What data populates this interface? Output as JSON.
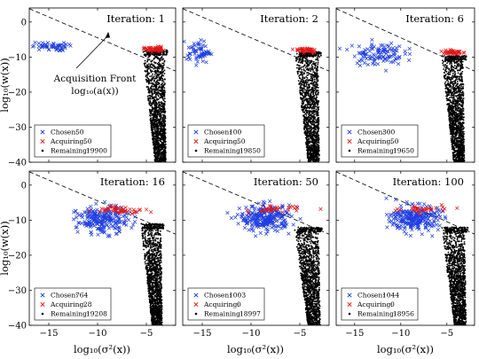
{
  "axes": {
    "xlabel": "log₁₀(σ²(x))",
    "ylabel": "log₁₀(w(x))",
    "xlim": [
      -17,
      -2
    ],
    "ylim": [
      -40,
      4
    ],
    "xticks": [
      -15,
      -10,
      -5
    ],
    "yticks": [
      0,
      -10,
      -20,
      -30,
      -40
    ]
  },
  "annotation": {
    "line1": "Acquisition Front",
    "line2": "log₁₀(a(x))",
    "arrow_head": [
      -8.9,
      -2.8
    ]
  },
  "front_line": {
    "style": "dashed",
    "x": [
      -17,
      -2
    ],
    "y": [
      3.8,
      -14
    ]
  },
  "colors": {
    "chosen": "#1f3fe0",
    "acquiring": "#e51515",
    "remaining": "#000000",
    "front": "#000000"
  },
  "chart_data": [
    {
      "type": "scatter",
      "title": "Iteration: 1",
      "legend": [
        {
          "label": "Chosen:",
          "value": "50"
        },
        {
          "label": "Acquiring:",
          "value": "50"
        },
        {
          "label": "Remaining:",
          "value": "19900"
        }
      ],
      "chosen_cluster": {
        "cx": -14.9,
        "cy": -7,
        "sx": 0.9,
        "sy": 0.6
      },
      "acquiring_cluster": {
        "cx": -4.2,
        "cy": -7.8,
        "sx": 0.5,
        "sy": 0.4
      },
      "remaining_tail": {
        "xl": -5.3,
        "xr": -2.8,
        "ytop": -8,
        "ybot": -40
      }
    },
    {
      "type": "scatter",
      "title": "Iteration: 2",
      "legend": [
        {
          "label": "Chosen:",
          "value": "100"
        },
        {
          "label": "Acquiring:",
          "value": "50"
        },
        {
          "label": "Remaining:",
          "value": "19850"
        }
      ],
      "chosen_cluster": {
        "cx": -15.4,
        "cy": -8.5,
        "sx": 0.6,
        "sy": 1.6
      },
      "acquiring_cluster": {
        "cx": -4.3,
        "cy": -8,
        "sx": 0.55,
        "sy": 0.4
      },
      "remaining_tail": {
        "xl": -5.4,
        "xr": -2.8,
        "ytop": -8.5,
        "ybot": -40
      }
    },
    {
      "type": "scatter",
      "title": "Iteration: 6",
      "legend": [
        {
          "label": "Chosen:",
          "value": "300"
        },
        {
          "label": "Acquiring:",
          "value": "50"
        },
        {
          "label": "Remaining:",
          "value": "19650"
        }
      ],
      "chosen_cluster": {
        "cx": -12.5,
        "cy": -9,
        "sx": 1.4,
        "sy": 1.6
      },
      "acquiring_cluster": {
        "cx": -4.4,
        "cy": -8.6,
        "sx": 0.5,
        "sy": 0.4
      },
      "remaining_tail": {
        "xl": -5.5,
        "xr": -2.9,
        "ytop": -9.5,
        "ybot": -40
      }
    },
    {
      "type": "scatter",
      "title": "Iteration: 16",
      "legend": [
        {
          "label": "Chosen:",
          "value": "764"
        },
        {
          "label": "Acquiring:",
          "value": "28"
        },
        {
          "label": "Remaining:",
          "value": "19208"
        }
      ],
      "chosen_cluster": {
        "cx": -9.5,
        "cy": -10,
        "sx": 1.3,
        "sy": 1.9
      },
      "acquiring_cluster": {
        "cx": -7.5,
        "cy": -7,
        "sx": 1.3,
        "sy": 0.5
      },
      "remaining_tail": {
        "xl": -5.5,
        "xr": -3.2,
        "ytop": -11,
        "ybot": -40
      }
    },
    {
      "type": "scatter",
      "title": "Iteration: 50",
      "legend": [
        {
          "label": "Chosen:",
          "value": "1003"
        },
        {
          "label": "Acquiring:",
          "value": "0"
        },
        {
          "label": "Remaining:",
          "value": "18997"
        }
      ],
      "chosen_cluster": {
        "cx": -8.5,
        "cy": -9.5,
        "sx": 1.3,
        "sy": 1.8
      },
      "acquiring_cluster": {
        "cx": -7.5,
        "cy": -7,
        "sx": 1.3,
        "sy": 0.5
      },
      "remaining_tail": {
        "xl": -5.5,
        "xr": -2.7,
        "ytop": -12,
        "ybot": -40
      }
    },
    {
      "type": "scatter",
      "title": "Iteration: 100",
      "legend": [
        {
          "label": "Chosen:",
          "value": "1044"
        },
        {
          "label": "Acquiring:",
          "value": "0"
        },
        {
          "label": "Remaining:",
          "value": "18956"
        }
      ],
      "chosen_cluster": {
        "cx": -8.5,
        "cy": -9.5,
        "sx": 1.3,
        "sy": 1.8
      },
      "acquiring_cluster": {
        "cx": -7.5,
        "cy": -7,
        "sx": 1.3,
        "sy": 0.5
      },
      "remaining_tail": {
        "xl": -5.5,
        "xr": -2.7,
        "ytop": -12,
        "ybot": -40
      }
    }
  ]
}
